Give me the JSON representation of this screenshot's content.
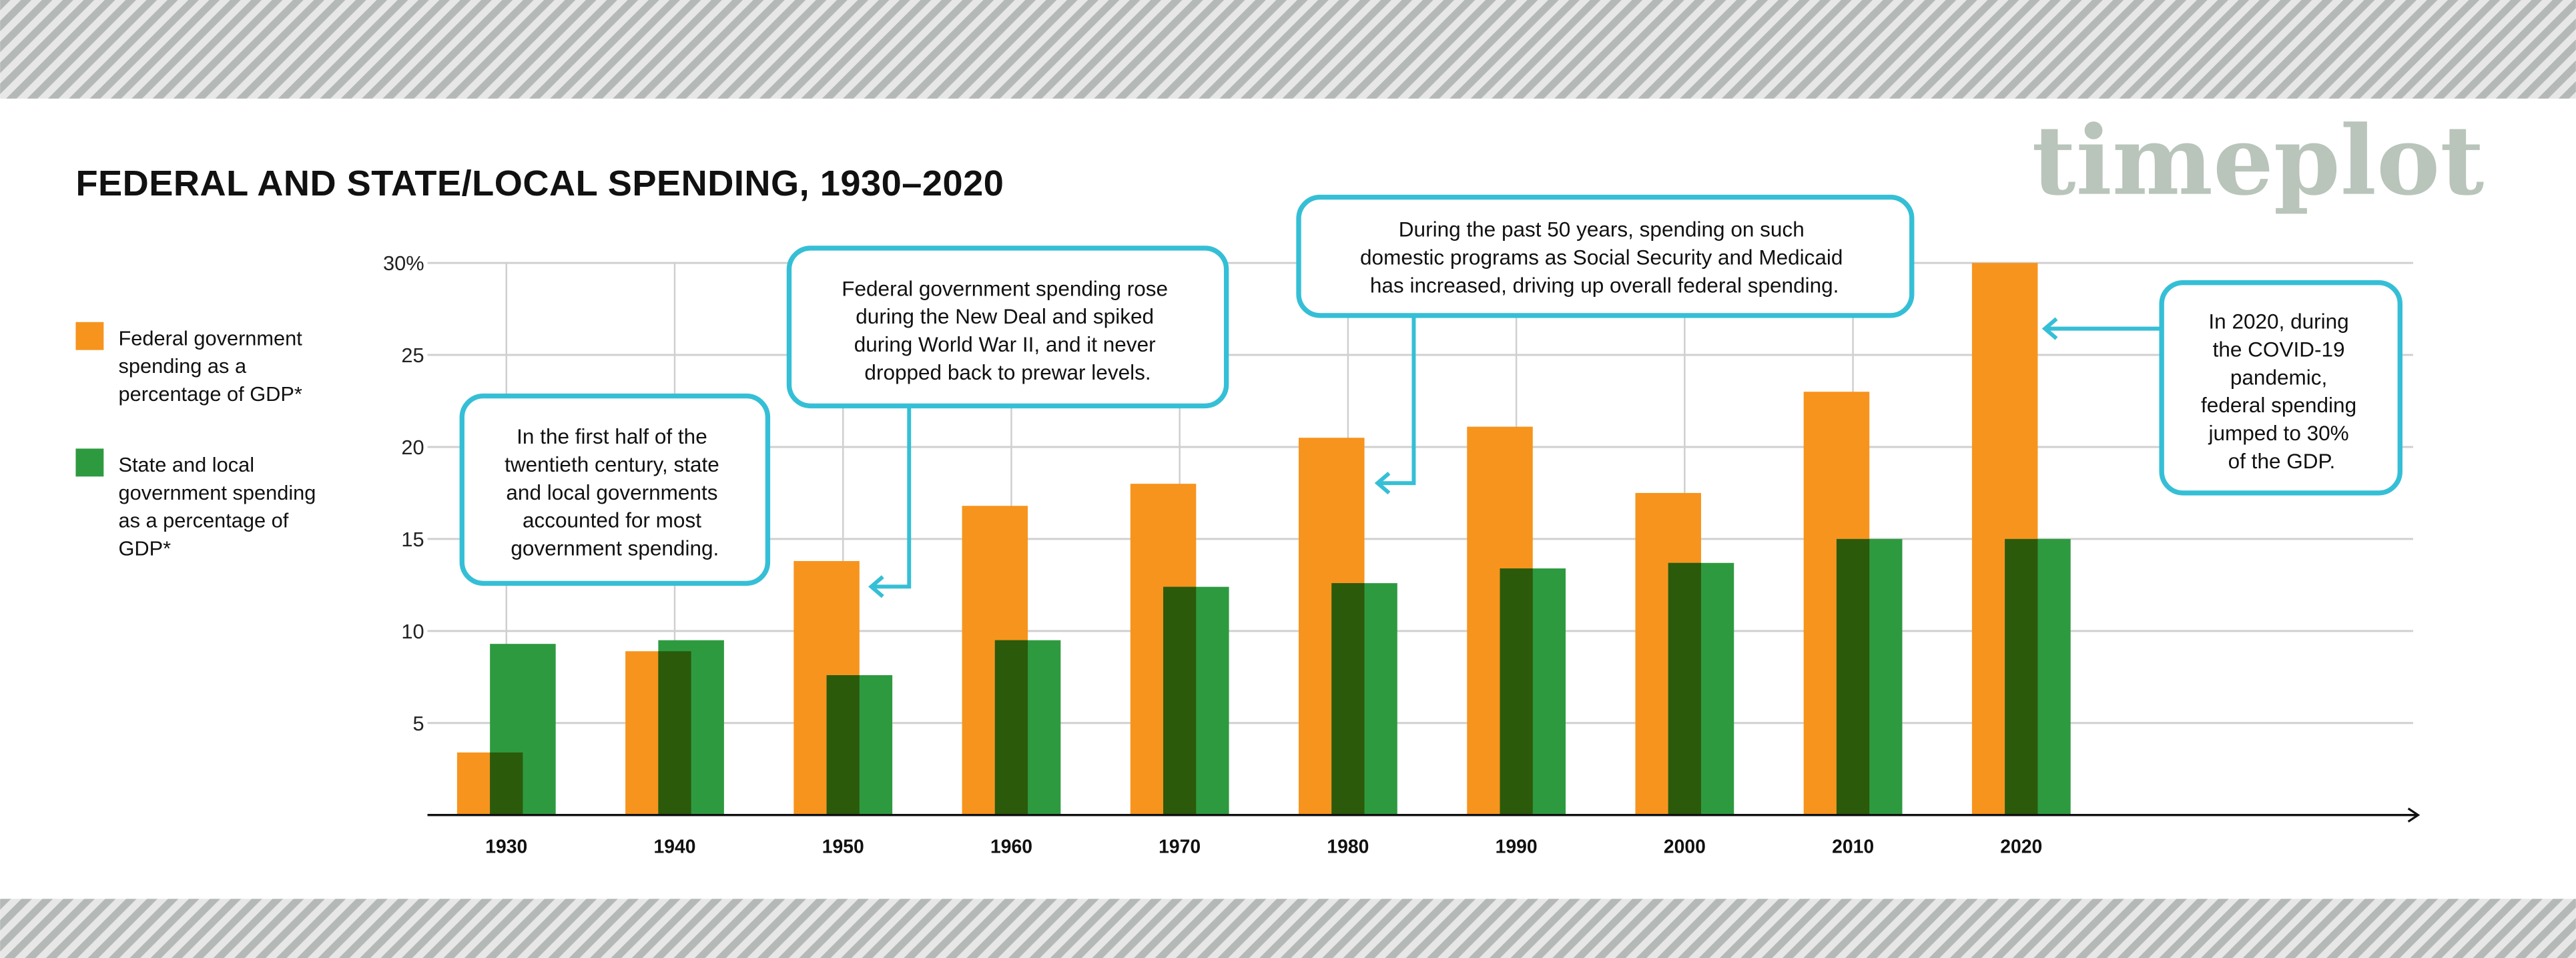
{
  "title": "FEDERAL AND STATE/LOCAL SPENDING, 1930–2020",
  "logo": "timeplot",
  "legend": [
    {
      "lines": [
        "Federal government",
        "spending as a",
        "percentage of GDP*"
      ],
      "color": "#f7941d"
    },
    {
      "lines": [
        "State and local",
        "government spending",
        "as a percentage of",
        "GDP*"
      ],
      "color": "#2e9a40"
    }
  ],
  "callouts": [
    {
      "lines": [
        "In the first half of the",
        "twentieth century, state",
        "and local governments",
        "accounted for most",
        "government spending."
      ]
    },
    {
      "lines": [
        "Federal government spending rose",
        "during the New Deal and spiked",
        "during World War II, and it never",
        "dropped back to prewar levels."
      ]
    },
    {
      "lines": [
        "During the past 50 years, spending on such",
        "domestic programs as Social Security and Medicaid",
        "has increased, driving up overall federal spending."
      ]
    },
    {
      "lines": [
        "In 2020, during",
        "the COVID-19",
        "pandemic,",
        "federal spending",
        "jumped to 30%",
        "of the GDP."
      ]
    }
  ],
  "colors": {
    "federal": "#f7941d",
    "state_local": "#2e9a40",
    "overlap": "#2b5a0a",
    "callout": "#35bfd6",
    "logo": "#b9c4bb"
  },
  "chart_data": {
    "type": "bar",
    "title": "FEDERAL AND STATE/LOCAL SPENDING, 1930–2020",
    "categories": [
      "1930",
      "1940",
      "1950",
      "1960",
      "1970",
      "1980",
      "1990",
      "2000",
      "2010",
      "2020"
    ],
    "series": [
      {
        "name": "Federal government spending as a percentage of GDP*",
        "values": [
          3.4,
          8.9,
          13.8,
          16.8,
          18.0,
          20.5,
          21.1,
          17.5,
          23.0,
          30.0
        ]
      },
      {
        "name": "State and local government spending as a percentage of GDP*",
        "values": [
          9.3,
          9.5,
          7.6,
          9.5,
          12.4,
          12.6,
          13.4,
          13.7,
          15.0,
          15.0
        ]
      }
    ],
    "ylim": [
      0,
      30
    ],
    "yticks": [
      5,
      10,
      15,
      20,
      25,
      30
    ],
    "ytick_labels": [
      "5",
      "10",
      "15",
      "20",
      "25",
      "30%"
    ],
    "grid": true,
    "legend": "left",
    "xlabel": "",
    "ylabel": ""
  }
}
